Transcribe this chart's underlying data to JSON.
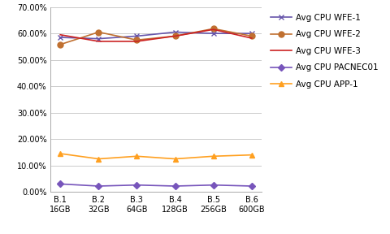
{
  "categories_line1": [
    "B.1",
    "B.2",
    "B.3",
    "B.4",
    "B.5",
    "B.6"
  ],
  "categories_line2": [
    "16GB",
    "32GB",
    "64GB",
    "128GB",
    "256GB",
    "600GB"
  ],
  "series": [
    {
      "label": "Avg CPU WFE-1",
      "values": [
        0.585,
        0.58,
        0.59,
        0.605,
        0.6,
        0.6
      ],
      "color": "#6655AA",
      "marker": "x",
      "markersize": 5,
      "linewidth": 1.2
    },
    {
      "label": "Avg CPU WFE-2",
      "values": [
        0.558,
        0.605,
        0.575,
        0.59,
        0.618,
        0.59
      ],
      "color": "#C07030",
      "marker": "o",
      "markersize": 5,
      "linewidth": 1.2
    },
    {
      "label": "Avg CPU WFE-3",
      "values": [
        0.595,
        0.57,
        0.57,
        0.59,
        0.615,
        0.582
      ],
      "color": "#CC2222",
      "marker": "",
      "markersize": 0,
      "linewidth": 1.2
    },
    {
      "label": "Avg CPU PACNEC01",
      "values": [
        0.03,
        0.022,
        0.026,
        0.022,
        0.026,
        0.022
      ],
      "color": "#7755BB",
      "marker": "D",
      "markersize": 4,
      "linewidth": 1.2
    },
    {
      "label": "Avg CPU APP-1",
      "values": [
        0.145,
        0.125,
        0.135,
        0.125,
        0.135,
        0.14
      ],
      "color": "#FFA020",
      "marker": "^",
      "markersize": 5,
      "linewidth": 1.2
    }
  ],
  "ylim": [
    0.0,
    0.7
  ],
  "yticks": [
    0.0,
    0.1,
    0.2,
    0.3,
    0.4,
    0.5,
    0.6,
    0.7
  ],
  "background_color": "#FFFFFF",
  "grid_color": "#CCCCCC",
  "legend_fontsize": 7.5,
  "tick_fontsize": 7
}
